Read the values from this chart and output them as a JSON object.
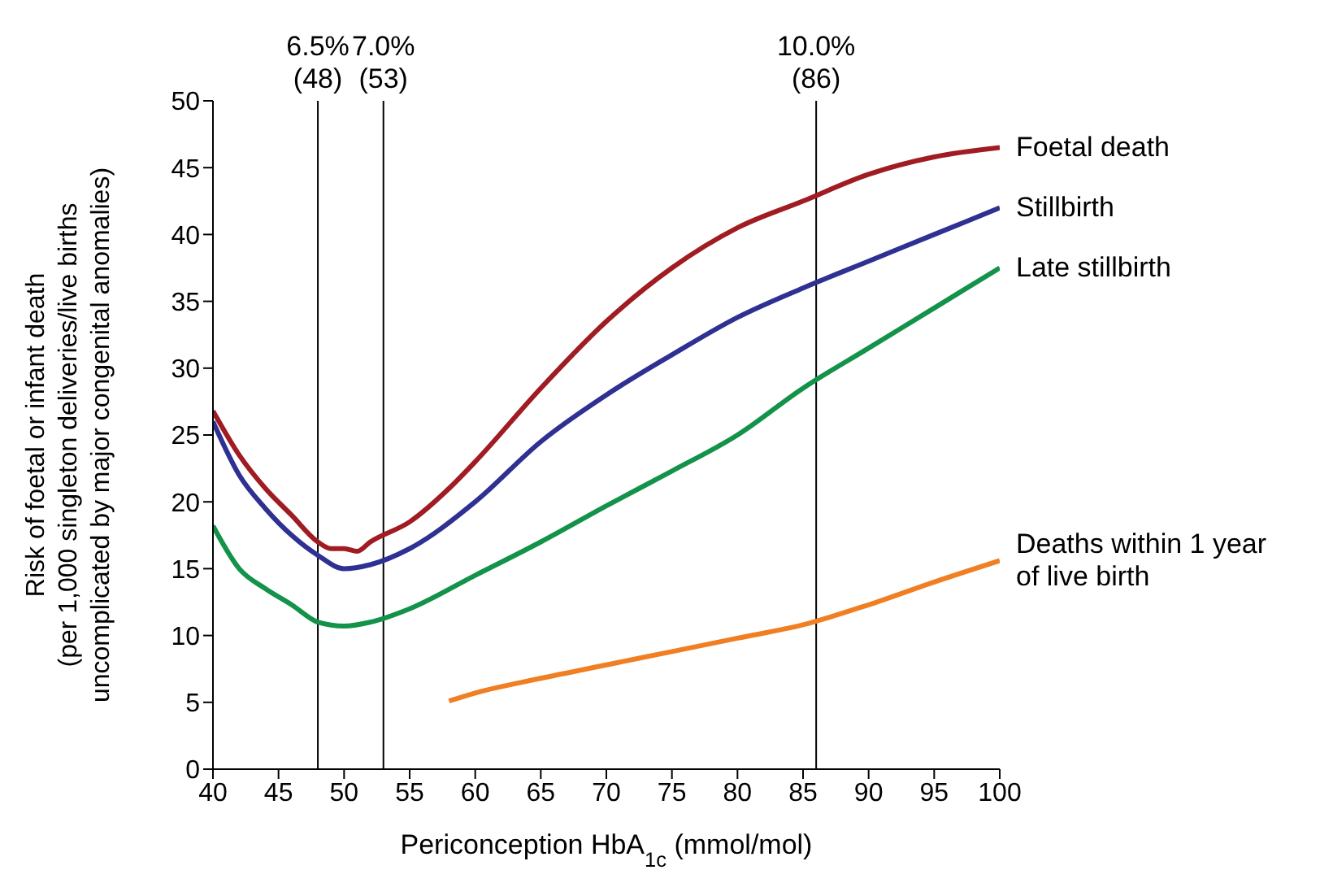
{
  "chart_data": {
    "type": "line",
    "xlabel": "Periconception HbA$_{1c}$ (mmol/mol)",
    "ylabel": "Risk of foetal or infant death\n(per 1,000 singleton deliveries/live births\nuncomplicated by major congenital anomalies)",
    "xlim": [
      40,
      100
    ],
    "xticks": [
      40,
      45,
      50,
      55,
      60,
      65,
      70,
      75,
      80,
      85,
      90,
      95,
      100
    ],
    "ylim": [
      0,
      50
    ],
    "yticks": [
      0,
      5,
      10,
      15,
      20,
      25,
      30,
      35,
      40,
      45,
      50
    ],
    "series": [
      {
        "name": "Foetal death",
        "color": "#a01c22",
        "x": [
          40,
          42,
          44,
          46,
          48,
          49,
          50,
          51,
          52,
          55,
          58,
          60,
          65,
          70,
          75,
          80,
          85,
          90,
          95,
          100
        ],
        "values": [
          26.8,
          23.5,
          21,
          19,
          17,
          16.5,
          16.5,
          16.3,
          17,
          18.5,
          21,
          23,
          28.5,
          33.5,
          37.5,
          40.5,
          42.5,
          44.5,
          45.8,
          46.5
        ]
      },
      {
        "name": "Stillbirth",
        "color": "#2e3192",
        "x": [
          40,
          42,
          44,
          46,
          48,
          50,
          52,
          55,
          60,
          65,
          70,
          75,
          80,
          85,
          90,
          95,
          100
        ],
        "values": [
          26,
          22,
          19.5,
          17.5,
          16,
          15,
          15.3,
          16.5,
          20,
          24.5,
          28,
          31,
          33.8,
          36,
          38,
          40,
          42
        ]
      },
      {
        "name": "Late stillbirth",
        "color": "#13924a",
        "x": [
          40,
          42,
          44,
          46,
          48,
          50,
          52,
          55,
          60,
          65,
          70,
          75,
          80,
          85,
          90,
          95,
          100
        ],
        "values": [
          18.2,
          15,
          13.5,
          12.3,
          11,
          10.7,
          11,
          12,
          14.5,
          17,
          19.7,
          22.3,
          25,
          28.5,
          31.5,
          34.5,
          37.5
        ]
      },
      {
        "name": "Deaths within 1 year\nof live birth",
        "color": "#f07f23",
        "x": [
          58,
          60,
          65,
          70,
          75,
          80,
          85,
          90,
          95,
          100
        ],
        "values": [
          5.1,
          5.7,
          6.8,
          7.8,
          8.8,
          9.8,
          10.8,
          12.3,
          14,
          15.6
        ]
      }
    ],
    "ref_lines": [
      {
        "axis": "x",
        "value": 48,
        "label": "6.5%\n(48)",
        "color": "#000000"
      },
      {
        "axis": "x",
        "value": 53,
        "label": "7.0%\n(53)",
        "color": "#000000"
      },
      {
        "axis": "x",
        "value": 86,
        "label": "10.0%\n(86)",
        "color": "#000000"
      }
    ]
  }
}
